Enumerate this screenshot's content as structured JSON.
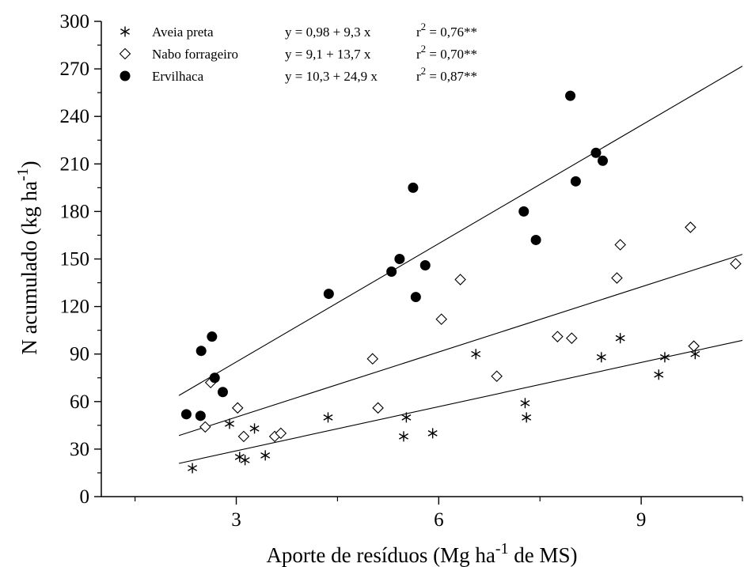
{
  "chart_data": {
    "type": "scatter",
    "title": "",
    "xlabel": {
      "main": "Aporte de resíduos (Mg ha",
      "sup": "-1",
      "tail": " de MS)"
    },
    "ylabel": {
      "main": "N acumulado (kg ha",
      "sup": "-1",
      "tail": ")"
    },
    "xlim": [
      1.0,
      10.5
    ],
    "ylim": [
      0,
      300
    ],
    "xticks": [
      3,
      6,
      9
    ],
    "xtick_labels": [
      "3",
      "6",
      "9"
    ],
    "yticks": [
      0,
      30,
      60,
      90,
      120,
      150,
      180,
      210,
      240,
      270,
      300
    ],
    "ytick_labels": [
      "0",
      "30",
      "60",
      "90",
      "120",
      "150",
      "180",
      "210",
      "240",
      "270",
      "300"
    ],
    "legend_position": "top-left",
    "series": [
      {
        "name": "Aveia preta",
        "marker": "asterisk",
        "equation": "y = 0,98 + 9,3 x",
        "r2_prefix": "r",
        "r2_sup": "2",
        "r2_value": " = 0,76**",
        "intercept": 0.98,
        "slope": 9.3,
        "fit_range": [
          2.15,
          10.5
        ],
        "points": [
          [
            2.35,
            18
          ],
          [
            2.9,
            46
          ],
          [
            3.05,
            25
          ],
          [
            3.13,
            23
          ],
          [
            3.27,
            43
          ],
          [
            3.43,
            26
          ],
          [
            4.36,
            50
          ],
          [
            5.48,
            38
          ],
          [
            5.52,
            50
          ],
          [
            5.91,
            40
          ],
          [
            6.55,
            90
          ],
          [
            7.28,
            59
          ],
          [
            7.3,
            50
          ],
          [
            8.41,
            88
          ],
          [
            8.69,
            100
          ],
          [
            9.26,
            77
          ],
          [
            9.35,
            88
          ],
          [
            9.8,
            90
          ]
        ]
      },
      {
        "name": "Nabo forrageiro",
        "marker": "open-diamond",
        "equation": "y = 9,1 + 13,7 x",
        "r2_prefix": "r",
        "r2_sup": "2",
        "r2_value": " = 0,70**",
        "intercept": 9.1,
        "slope": 13.7,
        "fit_range": [
          2.15,
          10.5
        ],
        "points": [
          [
            2.54,
            44
          ],
          [
            2.62,
            72
          ],
          [
            3.02,
            56
          ],
          [
            3.11,
            38
          ],
          [
            3.57,
            38
          ],
          [
            3.66,
            40
          ],
          [
            5.02,
            87
          ],
          [
            5.1,
            56
          ],
          [
            6.04,
            112
          ],
          [
            6.32,
            137
          ],
          [
            6.86,
            76
          ],
          [
            7.76,
            101
          ],
          [
            7.97,
            100
          ],
          [
            8.64,
            138
          ],
          [
            8.69,
            159
          ],
          [
            9.73,
            170
          ],
          [
            9.78,
            95
          ],
          [
            10.4,
            147
          ]
        ]
      },
      {
        "name": "Ervilhaca",
        "marker": "filled-circle",
        "equation": "y = 10,3 + 24,9 x",
        "r2_prefix": "r",
        "r2_sup": "2",
        "r2_value": " = 0,87**",
        "intercept": 10.3,
        "slope": 24.9,
        "fit_range": [
          2.15,
          10.5
        ],
        "points": [
          [
            2.26,
            52
          ],
          [
            2.47,
            51
          ],
          [
            2.48,
            92
          ],
          [
            2.64,
            101
          ],
          [
            2.68,
            75
          ],
          [
            2.8,
            66
          ],
          [
            4.37,
            128
          ],
          [
            5.3,
            142
          ],
          [
            5.42,
            150
          ],
          [
            5.62,
            195
          ],
          [
            5.66,
            126
          ],
          [
            5.8,
            146
          ],
          [
            7.26,
            180
          ],
          [
            7.44,
            162
          ],
          [
            7.95,
            253
          ],
          [
            8.03,
            199
          ],
          [
            8.33,
            217
          ],
          [
            8.43,
            212
          ]
        ]
      }
    ]
  }
}
